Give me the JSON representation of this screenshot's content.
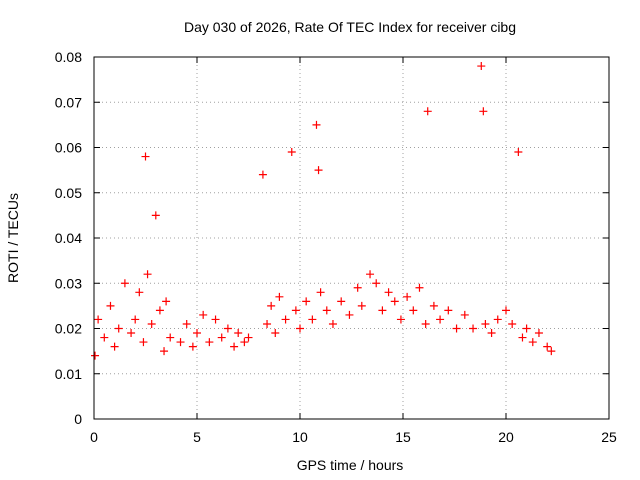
{
  "chart_data": {
    "type": "scatter",
    "title": "Day 030 of 2026, Rate Of TEC Index for receiver cibg",
    "xlabel": "GPS time / hours",
    "ylabel": "ROTI / TECUs",
    "xlim": [
      0,
      25
    ],
    "ylim": [
      0,
      0.08
    ],
    "x_ticks": [
      0,
      5,
      10,
      15,
      20,
      25
    ],
    "x_tick_labels": [
      "0",
      "5",
      "10",
      "15",
      "20",
      "25"
    ],
    "y_ticks": [
      0,
      0.01,
      0.02,
      0.03,
      0.04,
      0.05,
      0.06,
      0.07,
      0.08
    ],
    "y_tick_labels": [
      "0",
      "0.01",
      "0.02",
      "0.03",
      "0.04",
      "0.05",
      "0.06",
      "0.07",
      "0.08"
    ],
    "grid": true,
    "marker": "plus",
    "color": "#ff0000",
    "series": [
      {
        "name": "ROTI",
        "x": [
          0.05,
          0.2,
          0.5,
          0.8,
          1.0,
          1.2,
          1.5,
          1.8,
          2.0,
          2.2,
          2.4,
          2.5,
          2.6,
          2.8,
          3.0,
          3.2,
          3.4,
          3.5,
          3.7,
          4.2,
          4.5,
          4.8,
          5.0,
          5.3,
          5.6,
          5.9,
          6.2,
          6.5,
          6.8,
          7.0,
          7.3,
          7.5,
          8.2,
          8.4,
          8.6,
          8.8,
          9.0,
          9.3,
          9.6,
          9.8,
          10.0,
          10.3,
          10.6,
          10.8,
          10.9,
          11.0,
          11.3,
          11.6,
          12.0,
          12.4,
          12.8,
          13.0,
          13.4,
          13.7,
          14.0,
          14.3,
          14.6,
          14.9,
          15.2,
          15.5,
          15.8,
          16.1,
          16.2,
          16.5,
          16.8,
          17.2,
          17.6,
          18.0,
          18.4,
          18.8,
          18.9,
          19.0,
          19.3,
          19.6,
          20.0,
          20.3,
          20.6,
          20.8,
          21.0,
          21.3,
          21.6,
          22.0,
          22.2
        ],
        "y": [
          0.014,
          0.022,
          0.018,
          0.025,
          0.016,
          0.02,
          0.03,
          0.019,
          0.022,
          0.028,
          0.017,
          0.058,
          0.032,
          0.021,
          0.045,
          0.024,
          0.015,
          0.026,
          0.018,
          0.017,
          0.021,
          0.016,
          0.019,
          0.023,
          0.017,
          0.022,
          0.018,
          0.02,
          0.016,
          0.019,
          0.017,
          0.018,
          0.054,
          0.021,
          0.025,
          0.019,
          0.027,
          0.022,
          0.059,
          0.024,
          0.02,
          0.026,
          0.022,
          0.065,
          0.055,
          0.028,
          0.024,
          0.021,
          0.026,
          0.023,
          0.029,
          0.025,
          0.032,
          0.03,
          0.024,
          0.028,
          0.026,
          0.022,
          0.027,
          0.024,
          0.029,
          0.021,
          0.068,
          0.025,
          0.022,
          0.024,
          0.02,
          0.023,
          0.02,
          0.078,
          0.068,
          0.021,
          0.019,
          0.022,
          0.024,
          0.021,
          0.059,
          0.018,
          0.02,
          0.017,
          0.019,
          0.016,
          0.015
        ]
      }
    ]
  }
}
